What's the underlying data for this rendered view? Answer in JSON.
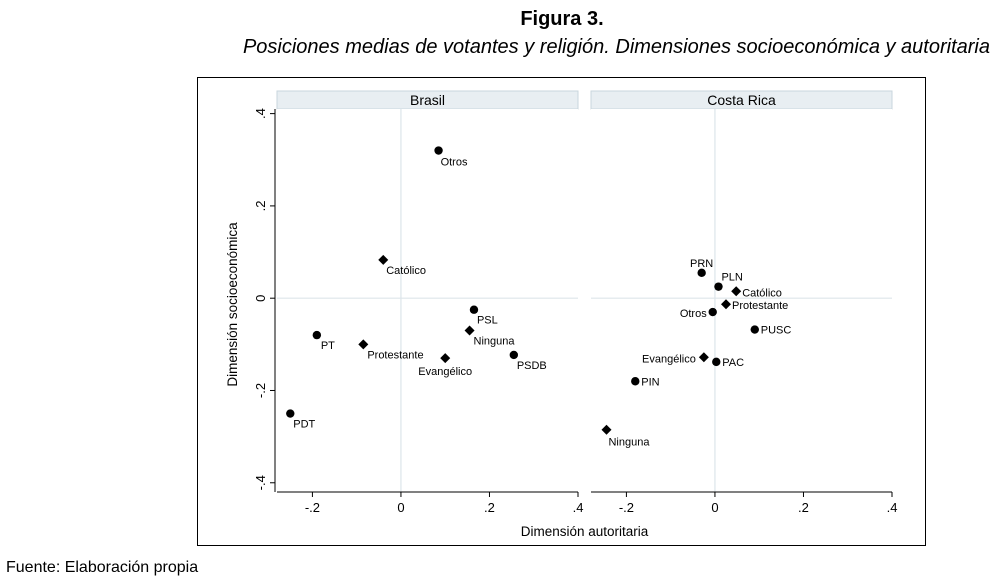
{
  "figure": {
    "title": "Figura 3.",
    "subtitle": "Posiciones medias de votantes y religión. Dimensiones socioeconómica y autoritaria",
    "source": "Fuente: Elaboración propia"
  },
  "chart_data": {
    "type": "scatter",
    "xlabel": "Dimensión autoritaria",
    "ylabel": "Dimensión socioeconómica",
    "xlim": [
      -0.28,
      0.4
    ],
    "ylim": [
      -0.42,
      0.41
    ],
    "xticks": [
      -0.2,
      0,
      0.2,
      0.4
    ],
    "xtick_labels": [
      "-.2",
      "0",
      ".2",
      ".4"
    ],
    "yticks": [
      -0.4,
      -0.2,
      0,
      0.2,
      0.4
    ],
    "ytick_labels": [
      "-.4",
      "-.2",
      "0",
      ".2",
      ".4"
    ],
    "reference_lines": {
      "x": 0,
      "y": 0
    },
    "marker_legend": {
      "circle": "party",
      "diamond": "religion"
    },
    "panels": [
      {
        "title": "Brasil",
        "points": [
          {
            "label": "Otros",
            "x": 0.085,
            "y": 0.32,
            "marker": "circle"
          },
          {
            "label": "Católico",
            "x": -0.04,
            "y": 0.083,
            "marker": "diamond"
          },
          {
            "label": "PSL",
            "x": 0.165,
            "y": -0.025,
            "marker": "circle"
          },
          {
            "label": "Ninguna",
            "x": 0.155,
            "y": -0.07,
            "marker": "diamond"
          },
          {
            "label": "PT",
            "x": -0.19,
            "y": -0.08,
            "marker": "circle"
          },
          {
            "label": "Protestante",
            "x": -0.085,
            "y": -0.1,
            "marker": "diamond"
          },
          {
            "label": "Evangélico",
            "x": 0.1,
            "y": -0.13,
            "marker": "diamond"
          },
          {
            "label": "PSDB",
            "x": 0.255,
            "y": -0.123,
            "marker": "circle"
          },
          {
            "label": "PDT",
            "x": -0.25,
            "y": -0.25,
            "marker": "circle"
          }
        ]
      },
      {
        "title": "Costa Rica",
        "points": [
          {
            "label": "PRN",
            "x": -0.03,
            "y": 0.055,
            "marker": "circle"
          },
          {
            "label": "PLN",
            "x": 0.008,
            "y": 0.025,
            "marker": "circle"
          },
          {
            "label": "Católico",
            "x": 0.048,
            "y": 0.015,
            "marker": "diamond"
          },
          {
            "label": "Protestante",
            "x": 0.025,
            "y": -0.013,
            "marker": "diamond"
          },
          {
            "label": "Otros",
            "x": -0.005,
            "y": -0.03,
            "marker": "circle"
          },
          {
            "label": "PUSC",
            "x": 0.09,
            "y": -0.068,
            "marker": "circle"
          },
          {
            "label": "Evangélico",
            "x": -0.025,
            "y": -0.128,
            "marker": "diamond"
          },
          {
            "label": "PAC",
            "x": 0.003,
            "y": -0.138,
            "marker": "circle"
          },
          {
            "label": "PIN",
            "x": -0.18,
            "y": -0.18,
            "marker": "circle"
          },
          {
            "label": "Ninguna",
            "x": -0.245,
            "y": -0.285,
            "marker": "diamond"
          }
        ]
      }
    ]
  }
}
